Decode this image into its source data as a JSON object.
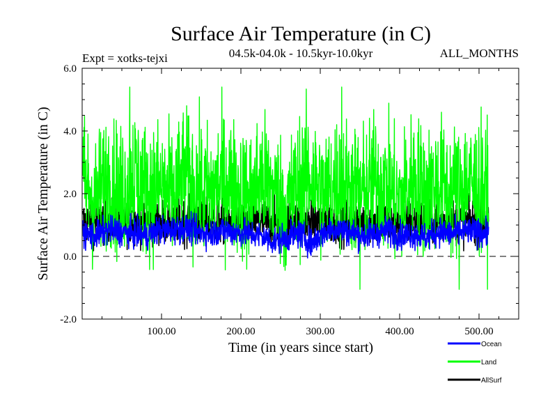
{
  "chart_data": {
    "type": "line",
    "title": "Surface Air Temperature (in C)",
    "subtitle": "04.5k-04.0k - 10.5kyr-10.0kyr",
    "left_annotation": "Expt = xotks-tejxi",
    "right_annotation": "ALL_MONTHS",
    "xlabel": "Time (in years since start)",
    "ylabel": "Surface Air Temperature (in C)",
    "xlim": [
      0,
      550
    ],
    "ylim": [
      -2.0,
      6.0
    ],
    "x_ticks": [
      100,
      200,
      300,
      400,
      500
    ],
    "x_tick_labels": [
      "100.00",
      "200.00",
      "300.00",
      "400.00",
      "500.00"
    ],
    "y_ticks": [
      -2.0,
      0.0,
      2.0,
      4.0,
      6.0
    ],
    "y_tick_labels": [
      "-2.0",
      "0.0",
      "2.0",
      "4.0",
      "6.0"
    ],
    "reference_line": {
      "y": 0.0,
      "style": "dashed"
    },
    "x_range": [
      1,
      512
    ],
    "series": [
      {
        "name": "Land",
        "color": "#00ff00",
        "mean": 2.1,
        "envelope": [
          -1.05,
          5.4
        ],
        "spike_max_years": [
          60,
          327
        ],
        "spike_min_years": [
          350,
          475
        ],
        "values_sampled_every_16_years": [
          2.6,
          1.5,
          2.9,
          1.8,
          3.2,
          2.0,
          2.4,
          1.7,
          2.9,
          2.2,
          1.9,
          2.7,
          2.3,
          1.6,
          2.8,
          2.1,
          1.2,
          2.5,
          2.9,
          1.8,
          2.6,
          2.3,
          1.9,
          2.7,
          2.2,
          1.5,
          2.8,
          2.0,
          2.5,
          1.9,
          2.6,
          2.3,
          2.0
        ]
      },
      {
        "name": "Ocean",
        "color": "#0000ff",
        "mean": 0.75,
        "envelope": [
          -0.2,
          1.5
        ],
        "values_sampled_every_16_years": [
          0.7,
          0.6,
          0.9,
          0.8,
          0.7,
          0.6,
          0.9,
          0.9,
          1.0,
          0.8,
          0.7,
          0.9,
          0.8,
          0.7,
          0.6,
          0.3,
          0.5,
          0.7,
          0.2,
          0.8,
          1.0,
          0.8,
          0.6,
          0.7,
          0.9,
          0.6,
          0.7,
          0.5,
          0.8,
          0.7,
          0.8,
          0.8,
          0.7
        ]
      },
      {
        "name": "AllSurf",
        "color": "#000000",
        "mean": 1.1,
        "envelope": [
          0.1,
          2.0
        ],
        "values_sampled_every_16_years": []
      }
    ],
    "legend": {
      "position": "bottom-right",
      "entries": [
        {
          "label": "Ocean",
          "color": "#0000ff"
        },
        {
          "label": "Land",
          "color": "#00ff00"
        },
        {
          "label": "AllSurf",
          "color": "#000000"
        }
      ]
    }
  }
}
